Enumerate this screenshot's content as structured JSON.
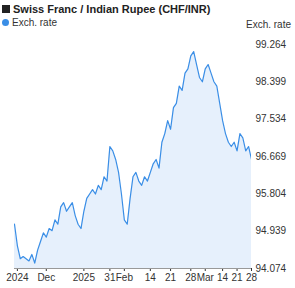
{
  "chart_data": {
    "type": "line",
    "title": "Swiss Franc / Indian Rupee (CHF/INR)",
    "y_label": "Exch. rate",
    "categories": [
      null,
      "2024",
      null,
      null,
      null,
      null,
      null,
      null,
      null,
      null,
      null,
      "Dec",
      null,
      null,
      null,
      null,
      null,
      null,
      null,
      null,
      null,
      null,
      null,
      null,
      "2025",
      null,
      null,
      null,
      null,
      null,
      null,
      null,
      null,
      "31",
      null,
      null,
      null,
      null,
      "Feb",
      null,
      null,
      null,
      null,
      null,
      null,
      null,
      null,
      "14",
      null,
      null,
      null,
      null,
      null,
      null,
      "21",
      null,
      null,
      null,
      null,
      null,
      null,
      "28",
      null,
      null,
      null,
      null,
      "Mar",
      null,
      null,
      null,
      null,
      null,
      "14",
      null,
      null,
      null,
      null,
      "21",
      null,
      null,
      null,
      null,
      "28"
    ],
    "series": [
      {
        "name": "Exch. rate",
        "color": "#3a8ee6",
        "values": [
          95.1,
          94.6,
          94.3,
          94.35,
          94.3,
          94.25,
          94.4,
          94.2,
          94.5,
          94.7,
          94.9,
          94.8,
          95.0,
          94.95,
          95.2,
          95.1,
          95.5,
          95.6,
          95.4,
          95.5,
          95.6,
          95.3,
          95.1,
          95.0,
          95.4,
          95.7,
          95.8,
          95.9,
          95.8,
          96.0,
          95.9,
          96.2,
          96.1,
          96.9,
          96.8,
          96.6,
          96.3,
          95.8,
          95.2,
          95.1,
          95.7,
          96.2,
          96.3,
          96.1,
          96.0,
          96.2,
          96.1,
          96.3,
          96.5,
          96.6,
          96.4,
          97.0,
          97.2,
          97.5,
          97.3,
          97.8,
          97.9,
          98.3,
          98.2,
          98.6,
          98.7,
          99.0,
          99.1,
          98.8,
          98.5,
          98.4,
          98.7,
          98.8,
          98.6,
          98.4,
          98.3,
          97.9,
          97.5,
          97.2,
          97.0,
          96.9,
          97.0,
          96.8,
          97.2,
          97.1,
          96.8,
          96.9,
          96.6
        ]
      }
    ],
    "ylim": [
      94.074,
      99.264
    ],
    "yticks": [
      94.074,
      94.939,
      95.804,
      96.669,
      97.534,
      98.399,
      99.264
    ],
    "grid": false,
    "legend": "top"
  }
}
